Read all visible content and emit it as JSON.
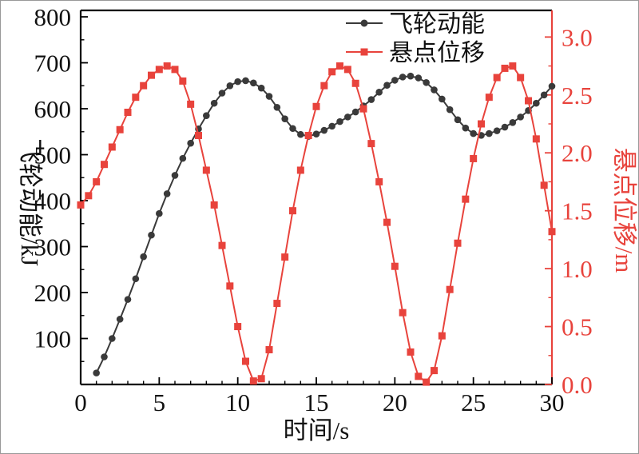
{
  "chart_data": {
    "type": "line",
    "title": "",
    "xlabel": "时间/s",
    "ylabel_left": "飞轮动能/kJ",
    "ylabel_right": "悬点位移/m",
    "xlim": [
      0,
      30
    ],
    "ylim_left": [
      0,
      814
    ],
    "ylim_right": [
      0,
      3.23
    ],
    "grid": false,
    "legend_position": "top-center",
    "colors": {
      "axis": "#000000",
      "red": "#e8433c",
      "black_series": "#3a3a3a"
    },
    "x_ticks": {
      "values": [
        0,
        5,
        10,
        15,
        20,
        25,
        30
      ],
      "labels": [
        "0",
        "5",
        "10",
        "15",
        "20",
        "25",
        "30"
      ]
    },
    "left_ticks": {
      "values": [
        100,
        200,
        300,
        400,
        500,
        600,
        700,
        800
      ],
      "labels": [
        "100",
        "200",
        "300",
        "400",
        "500",
        "600",
        "700",
        "800"
      ]
    },
    "right_ticks": {
      "values": [
        0,
        0.5,
        1.0,
        1.5,
        2.0,
        2.5,
        3.0
      ],
      "labels": [
        "0.0",
        "0.5",
        "1.0",
        "1.5",
        "2.0",
        "2.5",
        "3.0"
      ]
    },
    "legend": [
      {
        "label": "飞轮动能",
        "color": "#3a3a3a",
        "marker": "circle"
      },
      {
        "label": "悬点位移",
        "color": "#e8433c",
        "marker": "square"
      }
    ],
    "series": [
      {
        "id": "flywheel-energy",
        "name": "飞轮动能",
        "axis": "left",
        "unit": "kJ",
        "color": "#3a3a3a",
        "marker": "circle",
        "x": [
          1,
          1.5,
          2,
          2.5,
          3,
          3.5,
          4,
          4.5,
          5,
          5.5,
          6,
          6.5,
          7,
          7.5,
          8,
          8.5,
          9,
          9.5,
          10,
          10.5,
          11,
          11.5,
          12,
          12.5,
          13,
          13.5,
          14,
          14.5,
          15,
          15.5,
          16,
          16.5,
          17,
          17.5,
          18,
          18.5,
          19,
          19.5,
          20,
          20.5,
          21,
          21.5,
          22,
          22.5,
          23,
          23.5,
          24,
          24.5,
          25,
          25.5,
          26,
          26.5,
          27,
          27.5,
          28,
          28.5,
          29,
          29.5,
          30
        ],
        "y": [
          25,
          60,
          100,
          142,
          185,
          230,
          278,
          325,
          372,
          415,
          455,
          492,
          525,
          556,
          585,
          612,
          634,
          650,
          659,
          661,
          656,
          645,
          627,
          603,
          578,
          557,
          544,
          540,
          545,
          553,
          562,
          572,
          582,
          593,
          606,
          620,
          636,
          651,
          662,
          669,
          671,
          667,
          657,
          641,
          621,
          598,
          576,
          558,
          546,
          542,
          546,
          552,
          560,
          570,
          582,
          596,
          612,
          630,
          649
        ]
      },
      {
        "id": "suspension-displacement",
        "name": "悬点位移",
        "axis": "right",
        "unit": "m",
        "color": "#e8433c",
        "marker": "square",
        "x": [
          0,
          0.5,
          1,
          1.5,
          2,
          2.5,
          3,
          3.5,
          4,
          4.5,
          5,
          5.5,
          6,
          6.5,
          7,
          7.5,
          8,
          8.5,
          9,
          9.5,
          10,
          10.5,
          11,
          11.5,
          12,
          12.5,
          13,
          13.5,
          14,
          14.5,
          15,
          15.5,
          16,
          16.5,
          17,
          17.5,
          18,
          18.5,
          19,
          19.5,
          20,
          20.5,
          21,
          21.5,
          22,
          22.5,
          23,
          23.5,
          24,
          24.5,
          25,
          25.5,
          26,
          26.5,
          27,
          27.5,
          28,
          28.5,
          29,
          29.5,
          30
        ],
        "y": [
          1.55,
          1.63,
          1.75,
          1.9,
          2.05,
          2.2,
          2.35,
          2.48,
          2.58,
          2.67,
          2.72,
          2.75,
          2.72,
          2.62,
          2.42,
          2.15,
          1.85,
          1.55,
          1.2,
          0.85,
          0.5,
          0.2,
          0.03,
          0.05,
          0.3,
          0.7,
          1.1,
          1.5,
          1.85,
          2.15,
          2.4,
          2.58,
          2.7,
          2.75,
          2.72,
          2.6,
          2.38,
          2.08,
          1.75,
          1.4,
          1.02,
          0.62,
          0.28,
          0.07,
          0.02,
          0.12,
          0.42,
          0.82,
          1.22,
          1.6,
          1.95,
          2.25,
          2.48,
          2.65,
          2.73,
          2.75,
          2.65,
          2.45,
          2.12,
          1.72,
          1.32
        ]
      }
    ]
  }
}
